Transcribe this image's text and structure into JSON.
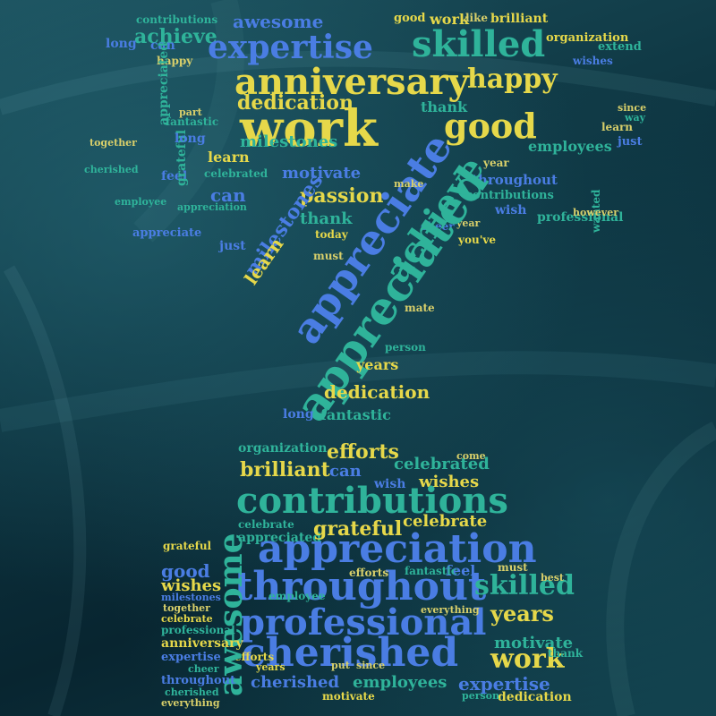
{
  "colors": {
    "blue": "#4a7de3",
    "teal": "#2fb39a",
    "yellow": "#e6d84a",
    "pale": "#d8cf6a",
    "background": "#0d3440"
  },
  "words": {
    "work": "work",
    "anniversary": "anniversary",
    "happy": "happy",
    "expertise": "expertise",
    "skilled": "skilled",
    "awesome": "awesome",
    "achieve": "achieve",
    "contributions": "contributions",
    "appreciate": "appreciate",
    "appreciated": "appreciated",
    "appreciation": "appreciation",
    "throughout": "throughout",
    "professional": "professional",
    "cherished": "cherished",
    "good": "good",
    "dedication": "dedication",
    "milestones": "milestones",
    "motivate": "motivate",
    "passion": "passion",
    "thank": "thank",
    "learn": "learn",
    "years": "years",
    "fantastic": "fantastic",
    "brilliant": "brilliant",
    "efforts": "efforts",
    "celebrated": "celebrated",
    "wishes": "wishes",
    "grateful": "grateful",
    "celebrate": "celebrate",
    "organization": "organization",
    "employees": "employees",
    "long": "long",
    "can": "can",
    "feel": "feel",
    "wish": "wish",
    "today": "today",
    "you_ve": "you've",
    "cheer": "cheer",
    "way": "way",
    "just": "just",
    "like": "like",
    "put": "put",
    "make": "make",
    "best": "best",
    "must": "must",
    "since": "since",
    "come": "come",
    "extend": "extend",
    "however": "however",
    "wanted": "wanted",
    "mate": "mate",
    "person": "person",
    "part": "part",
    "employee": "employee",
    "everything": "everything",
    "together": "together",
    "year": "year"
  }
}
